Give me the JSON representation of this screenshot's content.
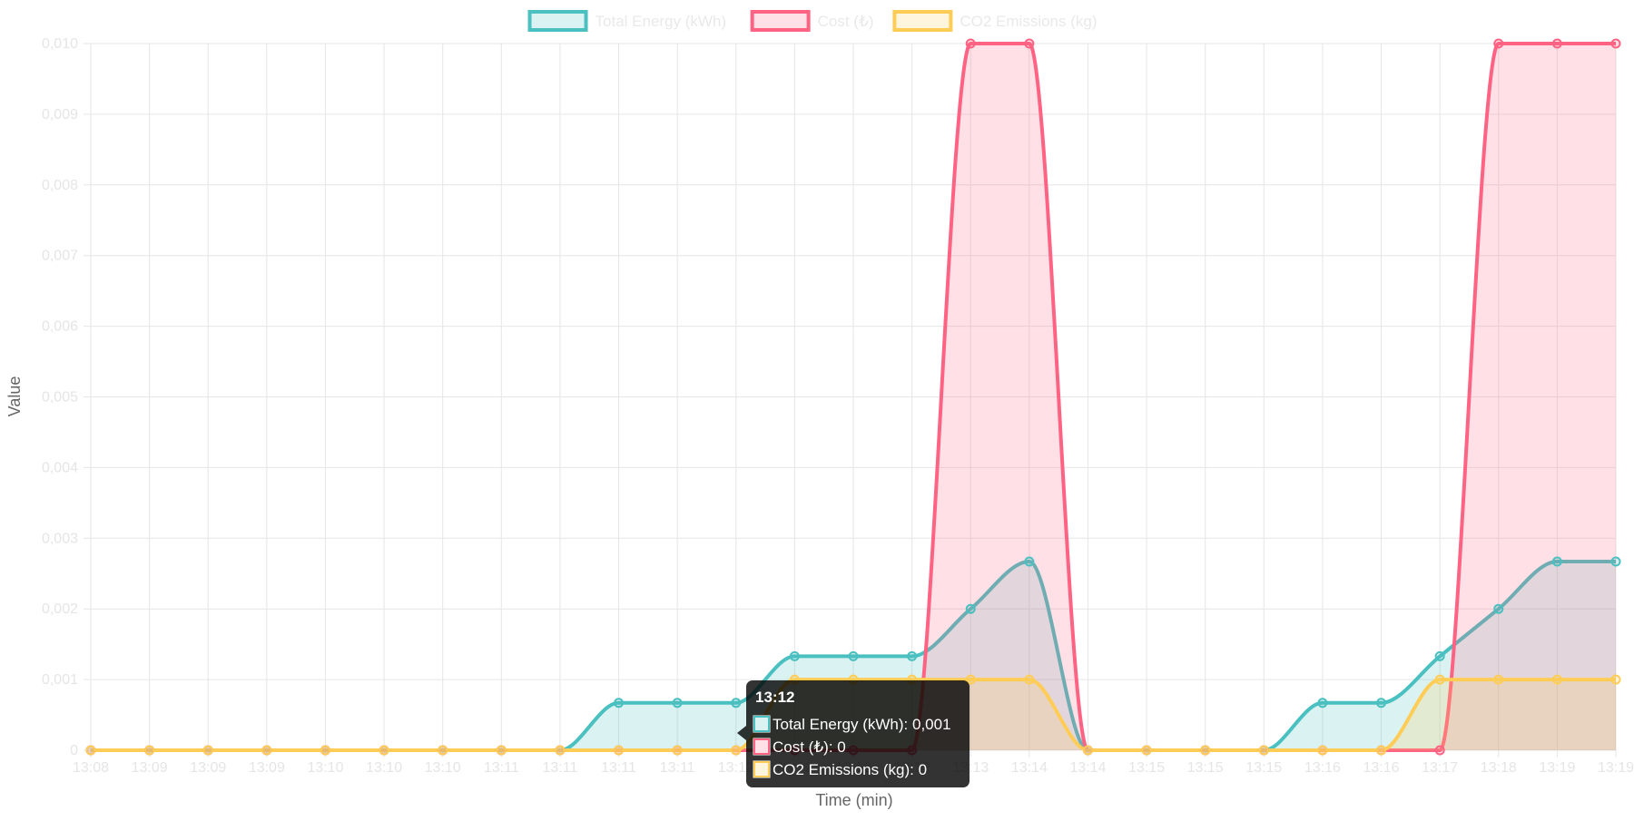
{
  "chart_data": {
    "type": "line",
    "xlabel": "Time (min)",
    "ylabel": "Value",
    "ylim": [
      0,
      0.01
    ],
    "yticks": [
      "0",
      "0,001",
      "0,002",
      "0,003",
      "0,004",
      "0,005",
      "0,006",
      "0,007",
      "0,008",
      "0,009",
      "0,010"
    ],
    "categories": [
      "13:08",
      "13:09",
      "13:09",
      "13:09",
      "13:10",
      "13:10",
      "13:10",
      "13:11",
      "13:11",
      "13:11",
      "13:11",
      "13:12",
      "13:12",
      "13:12",
      "13:12",
      "13:13",
      "13:14",
      "13:14",
      "13:15",
      "13:15",
      "13:15",
      "13:16",
      "13:16",
      "13:17",
      "13:18",
      "13:19",
      "13:19"
    ],
    "grid": true,
    "legend_position": "top",
    "series": [
      {
        "name": "Total Energy (kWh)",
        "color": "#4bc0c0",
        "fill": "rgba(75,192,192,0.2)",
        "values": [
          0,
          0,
          0,
          0,
          0,
          0,
          0,
          0,
          0,
          0.00067,
          0.00067,
          0.00067,
          0.00133,
          0.00133,
          0.00133,
          0.002,
          0.00267,
          0,
          0,
          0,
          0,
          0.00067,
          0.00067,
          0.00133,
          0.002,
          0.00267,
          0.00267
        ]
      },
      {
        "name": "Cost (₺)",
        "color": "#ff6384",
        "fill": "rgba(255,99,132,0.2)",
        "values": [
          0,
          0,
          0,
          0,
          0,
          0,
          0,
          0,
          0,
          0,
          0,
          0,
          0,
          0,
          0,
          0.01,
          0.01,
          0,
          0,
          0,
          0,
          0,
          0,
          0,
          0.01,
          0.01,
          0.01
        ]
      },
      {
        "name": "CO2 Emissions (kg)",
        "color": "#ffcd56",
        "fill": "rgba(255,205,86,0.2)",
        "values": [
          0,
          0,
          0,
          0,
          0,
          0,
          0,
          0,
          0,
          0,
          0,
          0,
          0.001,
          0.001,
          0.001,
          0.001,
          0.001,
          0,
          0,
          0,
          0,
          0,
          0,
          0.001,
          0.001,
          0.001,
          0.001
        ]
      }
    ],
    "tooltip": {
      "index": 11,
      "title": "13:12",
      "lines": [
        "Total Energy (kWh): 0,001",
        "Cost (₺): 0",
        "CO2 Emissions (kg): 0"
      ]
    }
  }
}
